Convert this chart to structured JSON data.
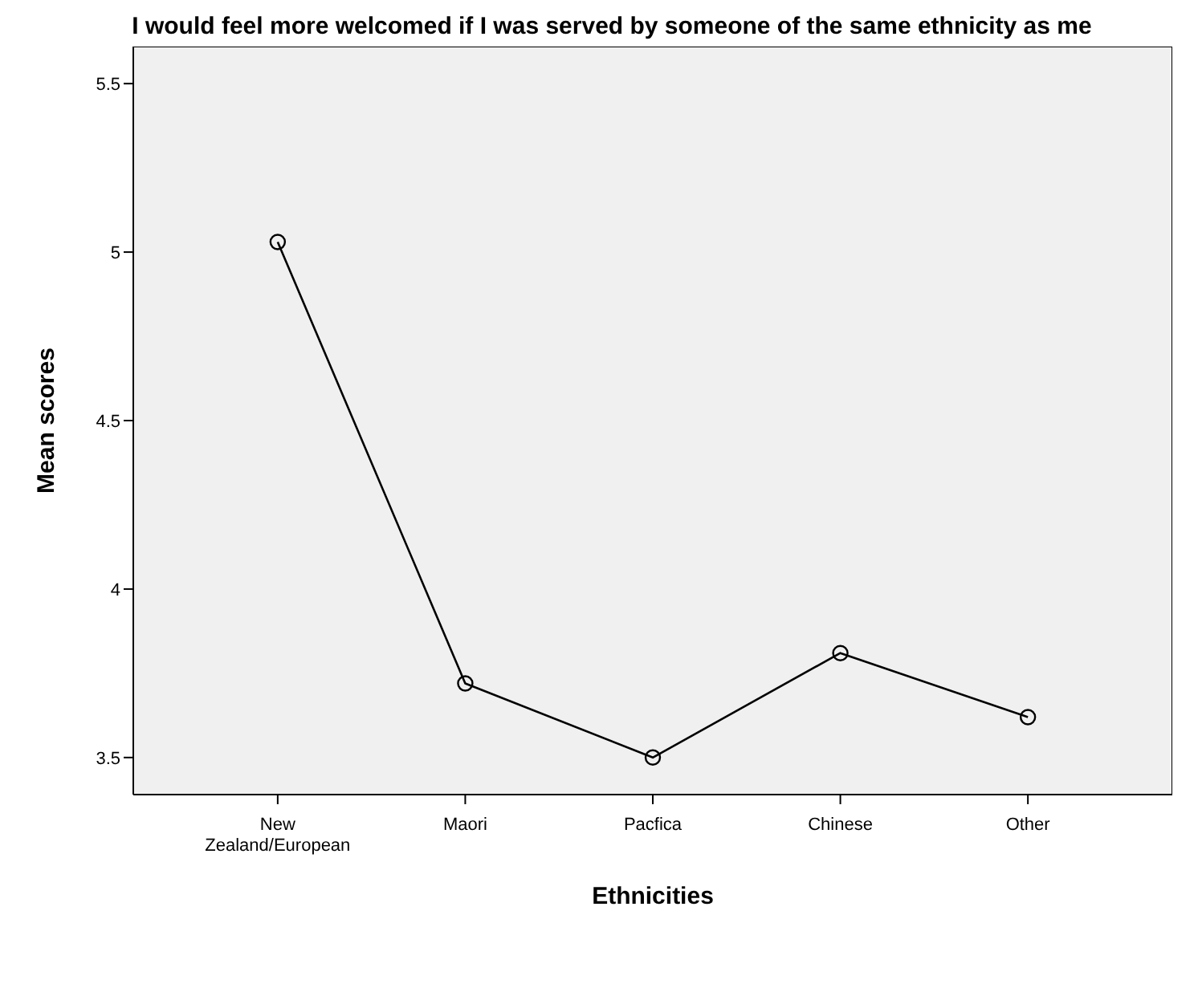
{
  "chart_data": {
    "type": "line",
    "title": "I would feel more welcomed if I was served by someone of the same ethnicity as me",
    "xlabel": "Ethnicities",
    "ylabel": "Mean scores",
    "categories": [
      "New Zealand/European",
      "Maori",
      "Pacfica",
      "Chinese",
      "Other"
    ],
    "series": [
      {
        "color": "#000000",
        "values": [
          5.03,
          3.72,
          3.5,
          3.81,
          3.62
        ]
      }
    ],
    "ylim": [
      3.39,
      5.61
    ],
    "yticks": [
      3.5,
      4,
      4.5,
      5,
      5.5
    ],
    "grid": false,
    "legend": false,
    "marker": "circle",
    "line_style": "solid"
  }
}
